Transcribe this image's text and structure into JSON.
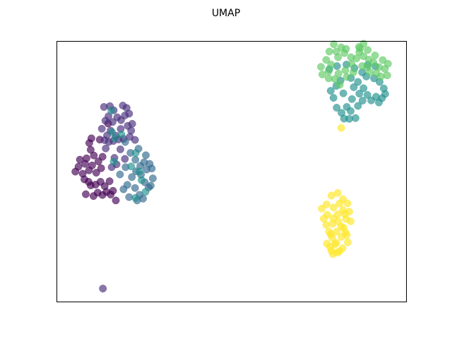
{
  "chart_data": {
    "type": "scatter",
    "title": "UMAP",
    "xlabel": "",
    "ylabel": "",
    "xlim": [
      0,
      100
    ],
    "ylim": [
      0,
      100
    ],
    "grid": false,
    "ticks": false,
    "alpha": 0.65,
    "clusters": [
      {
        "color": "#440154",
        "points": [
          [
            5.2,
            50.0
          ],
          [
            6.1,
            51.9
          ],
          [
            7.3,
            49.2
          ],
          [
            8.0,
            53.0
          ],
          [
            9.1,
            50.5
          ],
          [
            10.0,
            52.4
          ],
          [
            11.2,
            49.6
          ],
          [
            6.5,
            54.6
          ],
          [
            8.4,
            55.1
          ],
          [
            10.5,
            56.2
          ],
          [
            9.6,
            58.4
          ],
          [
            11.8,
            53.9
          ],
          [
            12.6,
            51.3
          ],
          [
            7.8,
            47.0
          ],
          [
            9.0,
            46.1
          ],
          [
            8.2,
            41.3
          ],
          [
            10.4,
            40.6
          ],
          [
            11.6,
            41.9
          ],
          [
            13.0,
            41.0
          ],
          [
            14.1,
            42.2
          ],
          [
            15.3,
            41.2
          ],
          [
            16.0,
            42.6
          ],
          [
            16.8,
            38.9
          ],
          [
            13.6,
            44.4
          ],
          [
            15.0,
            46.3
          ],
          [
            12.4,
            46.1
          ],
          [
            9.6,
            44.7
          ],
          [
            11.0,
            45.0
          ],
          [
            12.2,
            62.3
          ],
          [
            14.6,
            68.5
          ],
          [
            13.0,
            55.7
          ],
          [
            9.2,
            61.0
          ],
          [
            9.8,
            62.8
          ]
        ]
      },
      {
        "color": "#472d7b",
        "points": [
          [
            13.4,
            74.9
          ],
          [
            15.1,
            75.2
          ],
          [
            16.2,
            73.6
          ],
          [
            14.7,
            71.3
          ],
          [
            13.8,
            69.6
          ],
          [
            15.9,
            69.1
          ],
          [
            17.2,
            70.9
          ],
          [
            18.3,
            69.8
          ],
          [
            19.4,
            71.6
          ],
          [
            19.9,
            74.5
          ],
          [
            18.8,
            75.4
          ],
          [
            20.2,
            67.6
          ],
          [
            21.2,
            65.8
          ],
          [
            19.0,
            62.6
          ],
          [
            17.6,
            62.4
          ],
          [
            16.1,
            61.8
          ],
          [
            14.8,
            61.4
          ],
          [
            13.6,
            62.1
          ],
          [
            15.3,
            65.8
          ],
          [
            16.8,
            63.8
          ],
          [
            18.1,
            58.6
          ],
          [
            16.4,
            55.3
          ],
          [
            17.0,
            52.8
          ],
          [
            15.6,
            51.7
          ],
          [
            19.4,
            54.9
          ],
          [
            20.8,
            63.4
          ],
          [
            22.3,
            62.2
          ],
          [
            21.5,
            68.4
          ],
          [
            20.6,
            72.3
          ],
          [
            18.2,
            66.4
          ],
          [
            14.3,
            63.9
          ],
          [
            12.8,
            66.5
          ],
          [
            13.9,
            58.9
          ],
          [
            13.1,
            5.0
          ]
        ]
      },
      {
        "color": "#31688e",
        "points": [
          [
            19.5,
            61.4
          ],
          [
            21.0,
            57.2
          ],
          [
            22.4,
            54.6
          ],
          [
            23.8,
            52.2
          ],
          [
            22.6,
            50.1
          ],
          [
            21.4,
            47.9
          ],
          [
            24.0,
            48.8
          ],
          [
            25.6,
            50.8
          ],
          [
            24.9,
            53.6
          ],
          [
            23.3,
            58.8
          ],
          [
            25.4,
            56.3
          ],
          [
            26.5,
            53.0
          ],
          [
            27.1,
            51.2
          ],
          [
            25.1,
            45.9
          ],
          [
            23.6,
            41.1
          ],
          [
            22.3,
            43.7
          ],
          [
            20.1,
            44.9
          ],
          [
            19.0,
            43.2
          ],
          [
            20.6,
            40.2
          ],
          [
            22.9,
            38.9
          ],
          [
            24.6,
            39.6
          ],
          [
            26.2,
            43.9
          ],
          [
            27.4,
            47.4
          ],
          [
            26.8,
            44.6
          ],
          [
            18.0,
            48.9
          ],
          [
            19.6,
            51.7
          ]
        ]
      },
      {
        "color": "#21908d",
        "points": [
          [
            15.7,
            65.2
          ],
          [
            18.4,
            64.3
          ],
          [
            16.5,
            62.8
          ],
          [
            22.5,
            57.2
          ],
          [
            23.5,
            50.0
          ],
          [
            24.2,
            46.7
          ],
          [
            21.2,
            52.0
          ],
          [
            25.3,
            42.2
          ],
          [
            22.4,
            39.9
          ],
          [
            16.2,
            53.8
          ],
          [
            15.5,
            73.5
          ],
          [
            80.1,
            74.6
          ],
          [
            81.5,
            72.6
          ],
          [
            83.0,
            74.9
          ],
          [
            84.1,
            73.3
          ],
          [
            85.5,
            70.6
          ],
          [
            83.7,
            70.3
          ],
          [
            82.2,
            70.4
          ],
          [
            86.2,
            75.3
          ],
          [
            87.5,
            77.3
          ],
          [
            84.5,
            77.9
          ],
          [
            82.0,
            80.1
          ],
          [
            80.0,
            83.0
          ],
          [
            78.4,
            81.1
          ],
          [
            79.2,
            78.4
          ],
          [
            81.2,
            85.0
          ],
          [
            84.2,
            86.0
          ],
          [
            86.2,
            84.5
          ],
          [
            87.8,
            82.1
          ],
          [
            88.9,
            79.5
          ],
          [
            90.0,
            77.4
          ],
          [
            91.4,
            78.8
          ],
          [
            92.2,
            76.6
          ],
          [
            93.1,
            78.3
          ],
          [
            94.0,
            79.9
          ],
          [
            93.6,
            82.0
          ],
          [
            92.4,
            84.5
          ],
          [
            90.8,
            85.9
          ],
          [
            88.6,
            86.6
          ],
          [
            87.4,
            88.2
          ],
          [
            85.2,
            89.8
          ],
          [
            82.9,
            91.2
          ],
          [
            80.2,
            90.6
          ],
          [
            78.0,
            89.4
          ],
          [
            89.0,
            91.1
          ],
          [
            91.2,
            90.5
          ],
          [
            86.6,
            80.0
          ],
          [
            85.0,
            82.5
          ]
        ]
      },
      {
        "color": "#5ec962",
        "points": [
          [
            78.0,
            96.2
          ],
          [
            80.5,
            94.0
          ],
          [
            82.3,
            95.6
          ],
          [
            77.1,
            93.0
          ],
          [
            76.0,
            87.4
          ],
          [
            77.8,
            85.9
          ],
          [
            80.6,
            87.7
          ],
          [
            82.6,
            89.0
          ],
          [
            84.4,
            91.4
          ],
          [
            85.8,
            93.6
          ],
          [
            86.6,
            96.0
          ],
          [
            87.8,
            94.4
          ],
          [
            89.3,
            93.1
          ],
          [
            90.6,
            92.0
          ],
          [
            92.2,
            90.2
          ],
          [
            93.9,
            89.5
          ],
          [
            94.6,
            87.0
          ],
          [
            92.8,
            86.6
          ],
          [
            91.5,
            87.8
          ],
          [
            89.6,
            88.3
          ],
          [
            87.4,
            90.6
          ],
          [
            84.9,
            88.2
          ],
          [
            83.0,
            86.4
          ],
          [
            81.0,
            83.4
          ],
          [
            79.6,
            85.6
          ],
          [
            77.8,
            88.6
          ],
          [
            80.0,
            96.2
          ],
          [
            86.8,
            97.4
          ],
          [
            89.0,
            96.8
          ],
          [
            87.8,
            99.2
          ],
          [
            86.5,
            98.0
          ],
          [
            82.8,
            97.2
          ],
          [
            81.4,
            97.8
          ],
          [
            79.3,
            99.0
          ],
          [
            78.5,
            91.2
          ],
          [
            75.6,
            90.3
          ],
          [
            94.8,
            91.5
          ],
          [
            93.3,
            92.9
          ],
          [
            91.1,
            94.7
          ],
          [
            84.2,
            94.0
          ],
          [
            88.9,
            90.2
          ]
        ]
      },
      {
        "color": "#fde725",
        "points": [
          [
            81.4,
            66.8
          ],
          [
            78.6,
            40.8
          ],
          [
            80.4,
            41.8
          ],
          [
            81.9,
            39.4
          ],
          [
            80.9,
            37.7
          ],
          [
            79.2,
            36.2
          ],
          [
            77.2,
            37.4
          ],
          [
            75.8,
            35.8
          ],
          [
            77.4,
            33.4
          ],
          [
            79.2,
            32.0
          ],
          [
            80.4,
            33.6
          ],
          [
            81.9,
            35.2
          ],
          [
            83.2,
            37.8
          ],
          [
            83.7,
            34.6
          ],
          [
            82.8,
            31.8
          ],
          [
            81.4,
            28.9
          ],
          [
            80.1,
            26.9
          ],
          [
            78.8,
            24.6
          ],
          [
            77.3,
            22.3
          ],
          [
            78.6,
            19.6
          ],
          [
            80.3,
            18.8
          ],
          [
            81.8,
            20.5
          ],
          [
            83.3,
            22.8
          ],
          [
            83.0,
            25.6
          ],
          [
            81.5,
            24.9
          ],
          [
            79.6,
            22.1
          ],
          [
            77.9,
            26.9
          ],
          [
            77.1,
            29.5
          ],
          [
            78.9,
            29.9
          ],
          [
            80.6,
            30.8
          ],
          [
            82.4,
            33.7
          ],
          [
            82.1,
            28.4
          ],
          [
            80.9,
            19.4
          ],
          [
            79.0,
            18.3
          ],
          [
            78.2,
            21.0
          ],
          [
            84.1,
            30.9
          ],
          [
            76.4,
            31.9
          ],
          [
            80.0,
            22.6
          ],
          [
            82.6,
            26.6
          ],
          [
            78.4,
            25.9
          ]
        ]
      }
    ]
  }
}
